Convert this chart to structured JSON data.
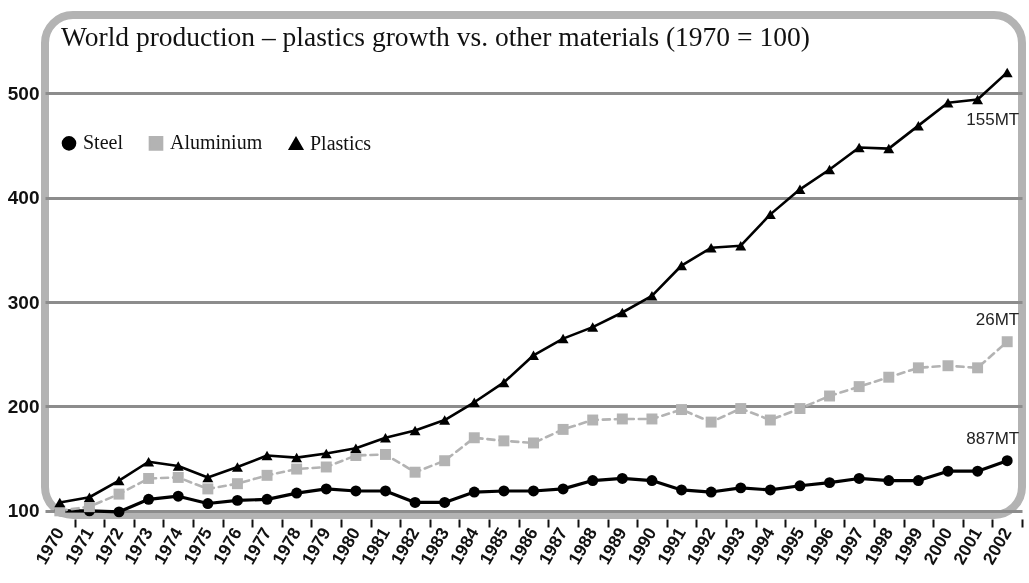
{
  "chart_data": {
    "type": "line",
    "title": "World production – plastics growth vs. other materials (1970 = 100)",
    "categories": [
      "1970",
      "1971",
      "1972",
      "1973",
      "1974",
      "1975",
      "1976",
      "1977",
      "1978",
      "1979",
      "1980",
      "1981",
      "1982",
      "1983",
      "1984",
      "1985",
      "1986",
      "1987",
      "1988",
      "1989",
      "1990",
      "1991",
      "1992",
      "1993",
      "1994",
      "1995",
      "1996",
      "1997",
      "1998",
      "1999",
      "2000",
      "2001",
      "2002"
    ],
    "series": [
      {
        "name": "Steel",
        "color": "#000000",
        "marker": "circle",
        "line_style": "solid",
        "values": [
          100,
          100,
          99,
          111,
          114,
          107,
          110,
          111,
          117,
          121,
          119,
          119,
          108,
          108,
          118,
          119,
          119,
          121,
          129,
          131,
          129,
          120,
          118,
          122,
          120,
          124,
          127,
          131,
          129,
          129,
          138,
          138,
          148
        ]
      },
      {
        "name": "Aluminium",
        "color": "#b3b3b3",
        "marker": "square",
        "line_style": "dashed",
        "values": [
          100,
          104,
          116,
          131,
          132,
          121,
          126,
          134,
          140,
          142,
          153,
          154,
          137,
          148,
          170,
          167,
          165,
          178,
          187,
          188,
          188,
          197,
          185,
          198,
          187,
          198,
          210,
          219,
          228,
          237,
          239,
          237,
          262
        ]
      },
      {
        "name": "Plastics",
        "color": "#000000",
        "marker": "triangle",
        "line_style": "solid",
        "values": [
          108,
          113,
          129,
          147,
          143,
          132,
          142,
          153,
          151,
          155,
          160,
          170,
          177,
          187,
          204,
          223,
          249,
          265,
          276,
          290,
          306,
          335,
          352,
          354,
          384,
          408,
          427,
          448,
          447,
          469,
          491,
          494,
          520
        ]
      }
    ],
    "ylim": [
      96,
      575
    ],
    "yticks": [
      100,
      200,
      300,
      400,
      500
    ],
    "grid": "y",
    "legend": "top left",
    "annotations": [
      {
        "text": "155MT",
        "x": "2002",
        "y": 520
      },
      {
        "text": "26MT",
        "x": "2002",
        "y": 262
      },
      {
        "text": "887MT",
        "x": "2002",
        "y": 148
      }
    ]
  }
}
